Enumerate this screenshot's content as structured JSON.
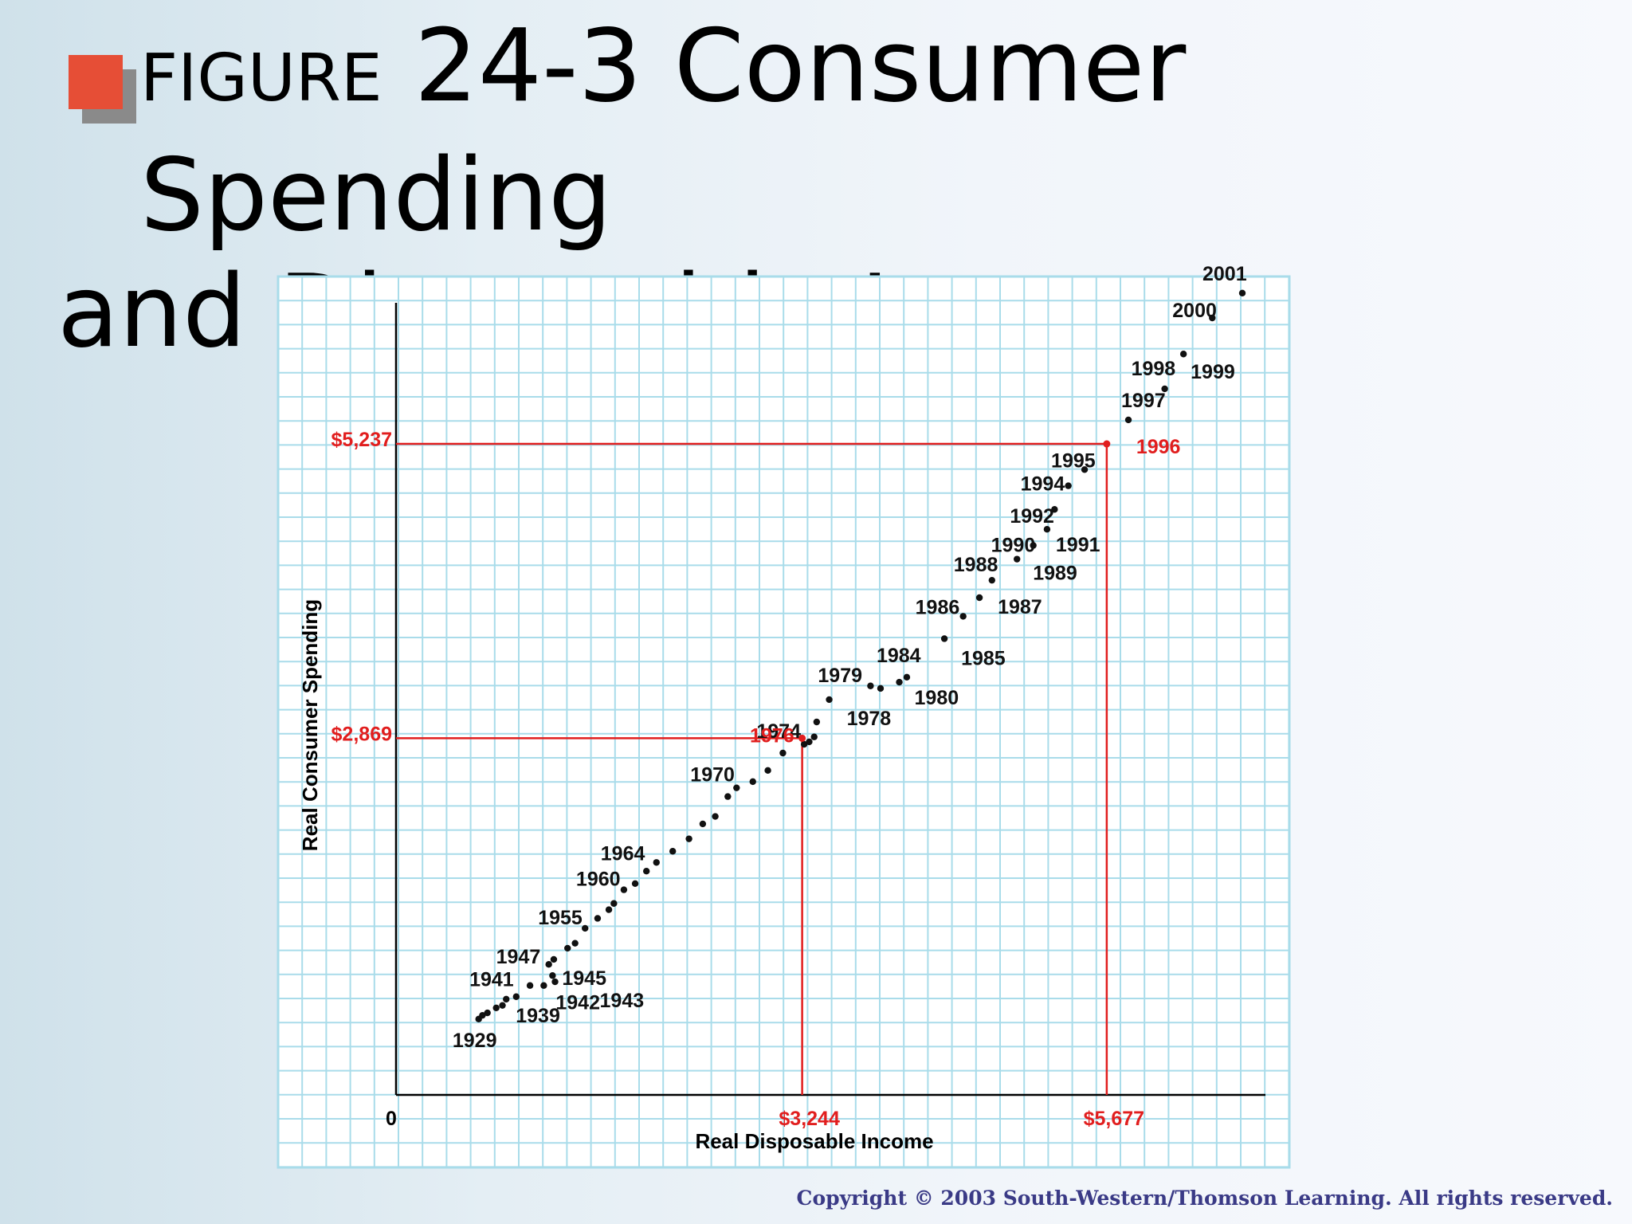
{
  "slide": {
    "title_prefix": "FIGURE",
    "title_line1": " 24-3 Consumer Spending",
    "title_line2": "and Disposable Income",
    "copyright": "Copyright © 2003 South-Western/Thomson Learning. All rights reserved."
  },
  "colors": {
    "accent_square": "#e64e36",
    "accent_shadow": "#8a8a8a",
    "grid": "#a9dcea",
    "highlight": "#e11e1e",
    "point": "#111111"
  },
  "chart_data": {
    "type": "scatter",
    "xlabel": "Real Disposable Income",
    "ylabel": "Real Consumer Spending",
    "origin_label": "0",
    "grid": true,
    "xlim": [
      0,
      7200
    ],
    "ylim": [
      0,
      6800
    ],
    "points": [
      {
        "x": 660,
        "y": 610,
        "label": "1929"
      },
      {
        "x": 690,
        "y": 640
      },
      {
        "x": 730,
        "y": 660
      },
      {
        "x": 800,
        "y": 700
      },
      {
        "x": 850,
        "y": 720
      },
      {
        "x": 880,
        "y": 770,
        "label": "1939"
      },
      {
        "x": 960,
        "y": 790
      },
      {
        "x": 1070,
        "y": 880,
        "label": "1941"
      },
      {
        "x": 1180,
        "y": 880,
        "label": "1942"
      },
      {
        "x": 1270,
        "y": 910,
        "label": "1943"
      },
      {
        "x": 1250,
        "y": 960,
        "label": "1945"
      },
      {
        "x": 1220,
        "y": 1050,
        "label": "1947"
      },
      {
        "x": 1260,
        "y": 1090
      },
      {
        "x": 1370,
        "y": 1180
      },
      {
        "x": 1430,
        "y": 1220
      },
      {
        "x": 1510,
        "y": 1340,
        "label": "1955"
      },
      {
        "x": 1610,
        "y": 1420
      },
      {
        "x": 1700,
        "y": 1490
      },
      {
        "x": 1740,
        "y": 1540
      },
      {
        "x": 1820,
        "y": 1650,
        "label": "1960"
      },
      {
        "x": 1910,
        "y": 1700
      },
      {
        "x": 2000,
        "y": 1800
      },
      {
        "x": 2080,
        "y": 1870,
        "label": "1964"
      },
      {
        "x": 2210,
        "y": 1960
      },
      {
        "x": 2340,
        "y": 2060
      },
      {
        "x": 2450,
        "y": 2180
      },
      {
        "x": 2550,
        "y": 2240
      },
      {
        "x": 2650,
        "y": 2400
      },
      {
        "x": 2720,
        "y": 2470,
        "label": "1970"
      },
      {
        "x": 2850,
        "y": 2520
      },
      {
        "x": 2970,
        "y": 2610
      },
      {
        "x": 3090,
        "y": 2750
      },
      {
        "x": 3260,
        "y": 2820
      },
      {
        "x": 3300,
        "y": 2840,
        "label": "1974"
      },
      {
        "x": 3340,
        "y": 2880
      },
      {
        "x": 3244,
        "y": 2869,
        "label": "1976",
        "highlight": true
      },
      {
        "x": 3360,
        "y": 3000
      },
      {
        "x": 3460,
        "y": 3180,
        "label": "1978"
      },
      {
        "x": 3790,
        "y": 3290,
        "label": "1979"
      },
      {
        "x": 3870,
        "y": 3270
      },
      {
        "x": 4020,
        "y": 3320,
        "label": "1980"
      },
      {
        "x": 4080,
        "y": 3360,
        "label": "1984"
      },
      {
        "x": 4380,
        "y": 3670,
        "label": "1985"
      },
      {
        "x": 4530,
        "y": 3850,
        "label": "1986"
      },
      {
        "x": 4660,
        "y": 4000,
        "label": "1987"
      },
      {
        "x": 4760,
        "y": 4140,
        "label": "1988"
      },
      {
        "x": 4960,
        "y": 4310,
        "label": "1989"
      },
      {
        "x": 5090,
        "y": 4420,
        "label": "1990"
      },
      {
        "x": 5200,
        "y": 4550,
        "label": "1991"
      },
      {
        "x": 5260,
        "y": 4710,
        "label": "1992"
      },
      {
        "x": 5370,
        "y": 4900,
        "label": "1994"
      },
      {
        "x": 5500,
        "y": 5030,
        "label": "1995"
      },
      {
        "x": 5677,
        "y": 5237,
        "label": "1996",
        "highlight": true
      },
      {
        "x": 5850,
        "y": 5430,
        "label": "1997"
      },
      {
        "x": 6140,
        "y": 5680,
        "label": "1998"
      },
      {
        "x": 6290,
        "y": 5960,
        "label": "1999"
      },
      {
        "x": 6520,
        "y": 6250,
        "label": "2000"
      },
      {
        "x": 6760,
        "y": 6450,
        "label": "2001"
      }
    ],
    "reference_lines": [
      {
        "x": 3244,
        "y": 2869,
        "x_label": "$3,244",
        "y_label": "$2,869"
      },
      {
        "x": 5677,
        "y": 5237,
        "x_label": "$5,677",
        "y_label": "$5,237"
      }
    ]
  }
}
